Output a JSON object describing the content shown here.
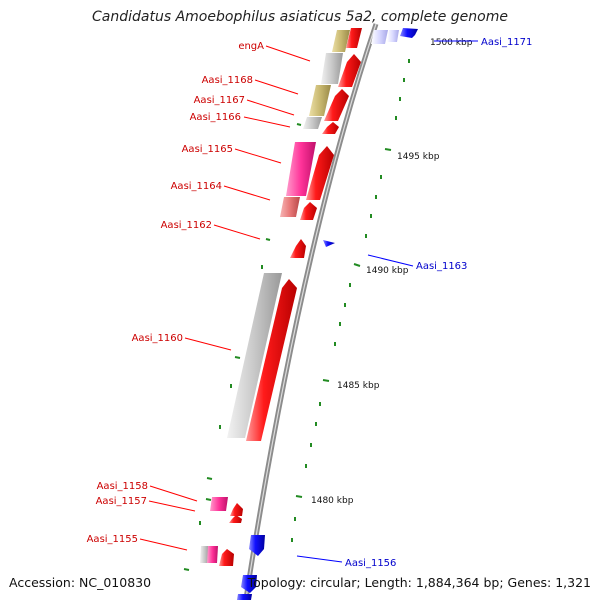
{
  "header": {
    "title": "Candidatus Amoebophilus asiaticus 5a2, complete genome"
  },
  "footer": {
    "accession": "Accession: NC_010830",
    "summary": "Topology: circular; Length: 1,884,364 bp; Genes: 1,321"
  },
  "colors": {
    "reverse_strand_gene": "#ff0000",
    "forward_strand_gene": "#0000ff",
    "rna_feature": "#ff3399",
    "gray_feature": "#c8c8c8",
    "khaki_feature": "#c8b870",
    "pink_feature": "#e87878",
    "backbone": "#8c8c8c",
    "tick": "#228B22"
  },
  "ruler": {
    "unit": "kbp",
    "labels": [
      {
        "kbp": 1500,
        "text": "1500 kbp"
      },
      {
        "kbp": 1495,
        "text": "1495 kbp"
      },
      {
        "kbp": 1490,
        "text": "1490 kbp"
      },
      {
        "kbp": 1485,
        "text": "1485 kbp"
      },
      {
        "kbp": 1480,
        "text": "1480 kbp"
      }
    ],
    "minor_tick_kbp": 1
  },
  "genes": [
    {
      "label": "engA",
      "strand": "-",
      "start_kbp": 1500.3,
      "end_kbp": 1499.3
    },
    {
      "label": "Aasi_1168",
      "strand": "-",
      "start_kbp": 1499.3,
      "end_kbp": 1498.3
    },
    {
      "label": "Aasi_1167",
      "strand": "-",
      "start_kbp": 1498.3,
      "end_kbp": 1497.4
    },
    {
      "label": "Aasi_1166",
      "strand": "-",
      "start_kbp": 1497.3,
      "end_kbp": 1496.9
    },
    {
      "label": "Aasi_1165",
      "strand": "-",
      "start_kbp": 1496.8,
      "end_kbp": 1494.5
    },
    {
      "label": "Aasi_1164",
      "strand": "-",
      "start_kbp": 1494.3,
      "end_kbp": 1493.6
    },
    {
      "label": "Aasi_1162",
      "strand": "-",
      "start_kbp": 1492.3,
      "end_kbp": 1491.6
    },
    {
      "label": "Aasi_1160",
      "strand": "-",
      "start_kbp": 1489.6,
      "end_kbp": 1482.3
    },
    {
      "label": "Aasi_1158",
      "strand": "-",
      "start_kbp": 1479.9,
      "end_kbp": 1479.5
    },
    {
      "label": "Aasi_1157",
      "strand": "-",
      "start_kbp": 1479.4,
      "end_kbp": 1479.2
    },
    {
      "label": "Aasi_1155",
      "strand": "-",
      "start_kbp": 1478.0,
      "end_kbp": 1477.4
    },
    {
      "label": "Aasi_1171",
      "strand": "+",
      "start_kbp": 1500.4,
      "end_kbp": 1501.5
    },
    {
      "label": "Aasi_1163",
      "strand": "+",
      "start_kbp": 1491.4,
      "end_kbp": 1491.2
    },
    {
      "label": "Aasi_1156",
      "strand": "+",
      "start_kbp": 1477.6,
      "end_kbp": 1478.4
    }
  ]
}
